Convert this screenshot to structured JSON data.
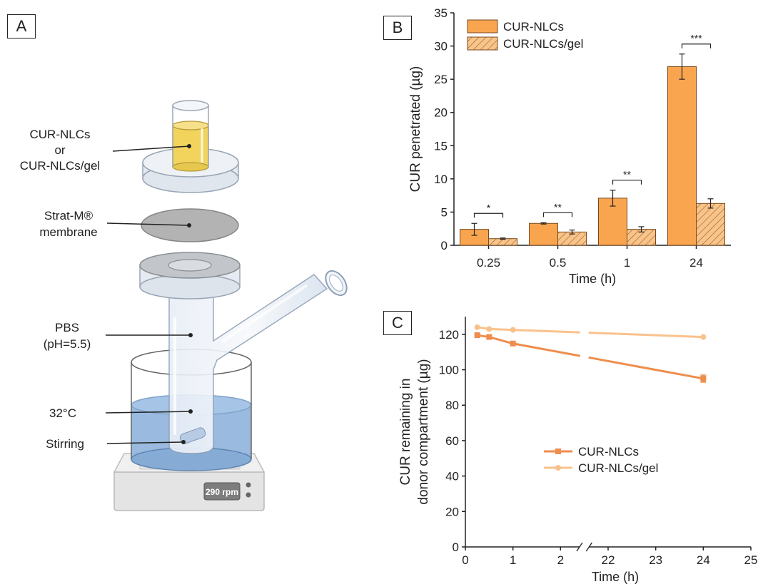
{
  "panels": {
    "a": "A",
    "b": "B",
    "c": "C"
  },
  "diagram": {
    "labels": {
      "donor": [
        "CUR-NLCs",
        "or",
        "CUR-NLCs/gel"
      ],
      "membrane": [
        "Strat-M®",
        "membrane"
      ],
      "receptor": [
        "PBS",
        "(pH=5.5)"
      ],
      "temperature": "32°C",
      "stirring": "Stirring",
      "rpm_display": "290 rpm"
    },
    "colors": {
      "donor_liquid": "#f2d45c",
      "membrane": "#b3b3b3",
      "water_bath": "#8fb4dc",
      "glass": "#dfe7f2"
    }
  },
  "chart_data": [
    {
      "type": "bar",
      "ylabel": "CUR penetrated (µg)",
      "xlabel": "Time (h)",
      "categories": [
        "0.25",
        "0.5",
        "1",
        "24"
      ],
      "ylim": [
        0,
        35
      ],
      "yticks": [
        0,
        5,
        10,
        15,
        20,
        25,
        30,
        35
      ],
      "series": [
        {
          "name": "CUR-NLCs",
          "values": [
            2.4,
            3.3,
            7.1,
            26.9
          ],
          "errors": [
            0.9,
            0.1,
            1.2,
            1.9
          ],
          "color": "#f9a550",
          "pattern": "solid"
        },
        {
          "name": "CUR-NLCs/gel",
          "values": [
            1.0,
            2.0,
            2.4,
            6.3
          ],
          "errors": [
            0.1,
            0.3,
            0.4,
            0.7
          ],
          "color": "#f9c48a",
          "pattern": "hatched"
        }
      ],
      "significance": [
        "*",
        "**",
        "**",
        "***"
      ],
      "legend_position": "top-left"
    },
    {
      "type": "line",
      "ylabel": "CUR remaining in donor compartment (µg)",
      "xlabel": "Time (h)",
      "ylim": [
        0,
        130
      ],
      "yticks": [
        0,
        20,
        40,
        60,
        80,
        100,
        120
      ],
      "xticks": [
        "0",
        "1",
        "2",
        "22",
        "23",
        "24",
        "25"
      ],
      "axis_break": "between 2 and 22",
      "series": [
        {
          "name": "CUR-NLCs",
          "x": [
            0.25,
            0.5,
            1,
            24
          ],
          "values": [
            119.5,
            118.5,
            114.8,
            95
          ],
          "color": "#ee8d4d",
          "marker": "square"
        },
        {
          "name": "CUR-NLCs/gel",
          "x": [
            0.25,
            0.5,
            1,
            24
          ],
          "values": [
            124,
            123,
            122.5,
            118.5
          ],
          "color": "#f9c28c",
          "marker": "circle"
        }
      ],
      "legend_position": "center"
    }
  ]
}
